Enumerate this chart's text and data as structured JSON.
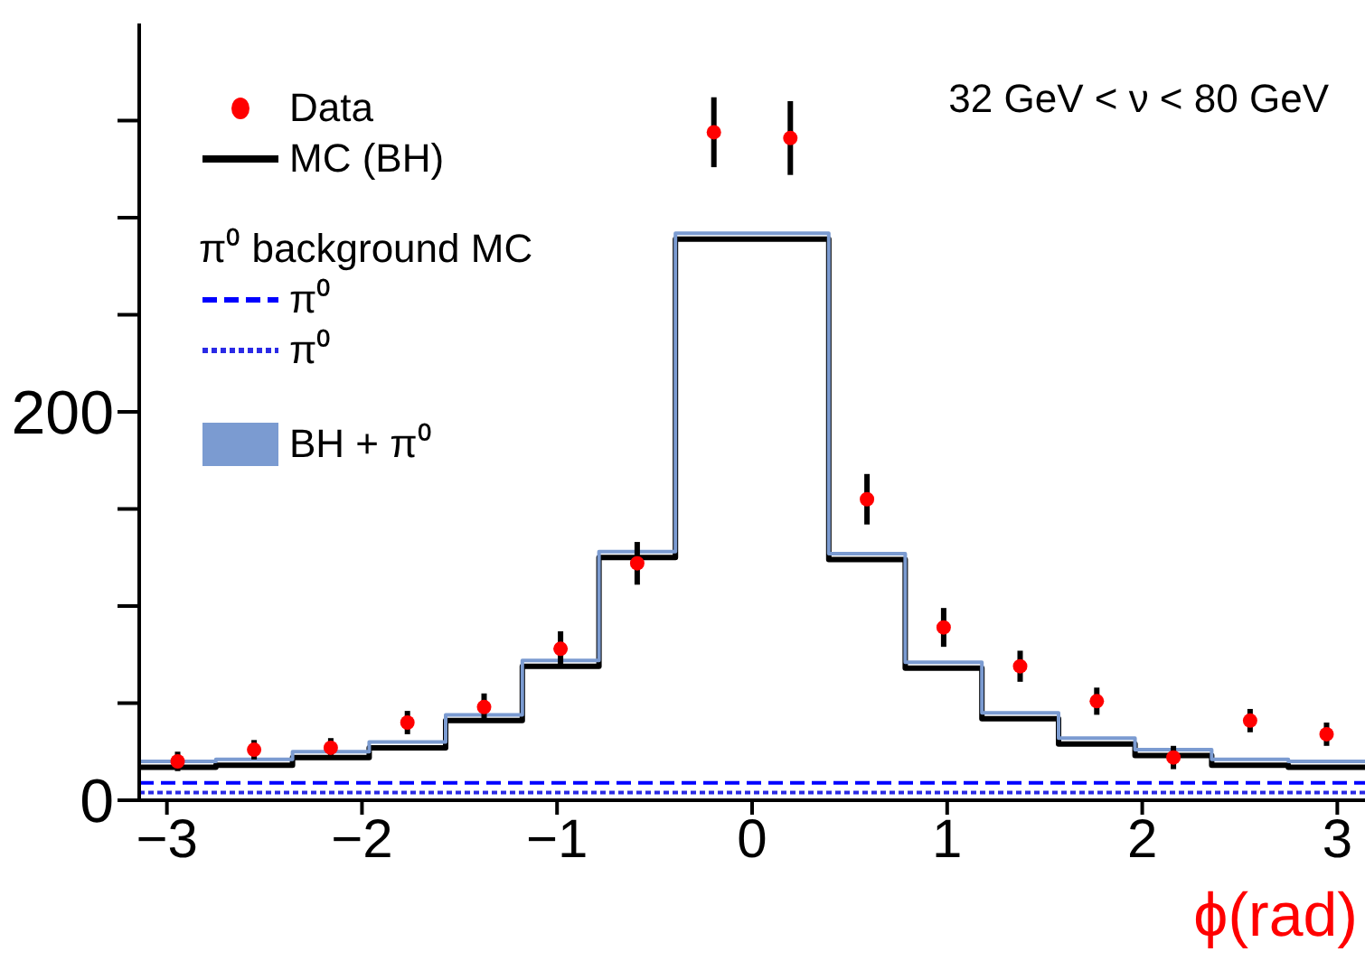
{
  "chart_data": {
    "type": "histogram",
    "xlabel": "ϕ(rad)",
    "legend_title": "π⁰ background MC",
    "annotations": [
      "32 GeV < ν < 80 GeV"
    ],
    "bins": [
      -3.142,
      -2.749,
      -2.356,
      -1.963,
      -1.571,
      -1.178,
      -0.785,
      -0.393,
      0,
      0.393,
      0.785,
      1.178,
      1.571,
      1.963,
      2.356,
      2.749,
      3.142
    ],
    "series": [
      {
        "name": "Data",
        "type": "scatter",
        "color": "#ff0000",
        "marker": "circle",
        "x": [
          -2.945,
          -2.553,
          -2.16,
          -1.767,
          -1.374,
          -0.982,
          -0.589,
          -0.196,
          0.196,
          0.589,
          0.982,
          1.374,
          1.767,
          2.16,
          2.553,
          2.945
        ],
        "values": [
          20,
          26,
          27,
          40,
          48,
          78,
          122,
          344,
          341,
          155,
          89,
          69,
          51,
          22,
          41,
          34
        ],
        "errors": [
          5,
          5,
          5,
          6,
          7,
          9,
          11,
          18,
          19,
          13,
          10,
          8,
          7,
          6,
          6,
          6
        ]
      },
      {
        "name": "MC (BH)",
        "type": "histogram",
        "color": "#000000",
        "values": [
          17,
          18,
          22,
          27,
          41,
          69,
          125,
          289,
          289,
          124,
          68,
          42,
          29,
          23,
          18,
          17
        ]
      },
      {
        "name": "π⁰",
        "type": "histogram",
        "color": "#0000ff",
        "line_style": "dashed",
        "values": [
          9,
          9,
          9,
          9,
          9,
          9,
          9,
          9,
          9,
          9,
          9,
          9,
          9,
          9,
          9,
          9
        ]
      },
      {
        "name": "π⁰",
        "type": "histogram",
        "color": "#2a2ae6",
        "line_style": "dotted",
        "values": [
          4,
          4,
          4,
          4,
          4,
          4,
          4,
          4,
          4,
          4,
          4,
          4,
          4,
          4,
          4,
          4
        ]
      },
      {
        "name": "BH + π⁰",
        "type": "histogram",
        "color": "#7b9bd1",
        "values": [
          20,
          21,
          25,
          30,
          44,
          72,
          128,
          292,
          292,
          127,
          71,
          45,
          32,
          26,
          21,
          20
        ]
      }
    ],
    "xlim": [
      -3.142,
      3.142
    ],
    "xticks": [
      -3,
      -2,
      -1,
      0,
      1,
      2,
      3
    ],
    "ylim": [
      0,
      400
    ],
    "yticks": [
      {
        "value": 0,
        "label": "0"
      },
      {
        "value": 50,
        "label": null
      },
      {
        "value": 100,
        "label": null
      },
      {
        "value": 150,
        "label": null
      },
      {
        "value": 200,
        "label": "200"
      },
      {
        "value": 250,
        "label": null
      },
      {
        "value": 300,
        "label": null
      },
      {
        "value": 350,
        "label": null
      }
    ],
    "grid": false,
    "legend": "top left"
  }
}
